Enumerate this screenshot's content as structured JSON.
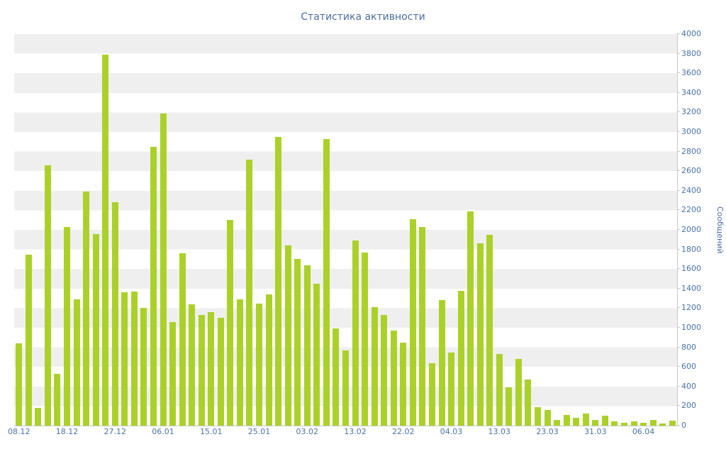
{
  "chart_data": {
    "type": "bar",
    "title": "Статистика активности",
    "xlabel": "",
    "ylabel": "Сообщений",
    "ylim": [
      0,
      4000
    ],
    "y_tick_step": 200,
    "grid": "striped-horizontal-bands",
    "legend": "none",
    "bar_color": "#abd129",
    "x_tick_labels": [
      "08.12",
      "18.12",
      "27.12",
      "06.01",
      "15.01",
      "25.01",
      "03.02",
      "13.02",
      "22.02",
      "04.03",
      "13.03",
      "23.03",
      "31.03",
      "06.04"
    ],
    "x_tick_indices": [
      0,
      5,
      10,
      15,
      20,
      25,
      30,
      35,
      40,
      45,
      50,
      55,
      60,
      65
    ],
    "values": [
      840,
      1750,
      180,
      2660,
      530,
      2030,
      1290,
      2390,
      1960,
      3790,
      2280,
      1360,
      1370,
      1200,
      2850,
      3190,
      1060,
      1760,
      1240,
      1130,
      1160,
      1100,
      2100,
      1290,
      2720,
      1250,
      1340,
      2950,
      1840,
      1700,
      1640,
      1450,
      2930,
      990,
      770,
      1890,
      1770,
      1210,
      1130,
      970,
      850,
      2110,
      2030,
      640,
      1280,
      750,
      1380,
      2190,
      1860,
      1950,
      730,
      390,
      680,
      470,
      190,
      160,
      60,
      110,
      80,
      120,
      60,
      100,
      40,
      30,
      40,
      30,
      60,
      20,
      50
    ]
  },
  "colors": {
    "title_text": "#4a6e9b",
    "axis_text": "#4a74a4",
    "stripe_band": "#efefef",
    "background": "#ffffff",
    "bar": "#abd129",
    "axis_line": "#c9c9c9"
  }
}
